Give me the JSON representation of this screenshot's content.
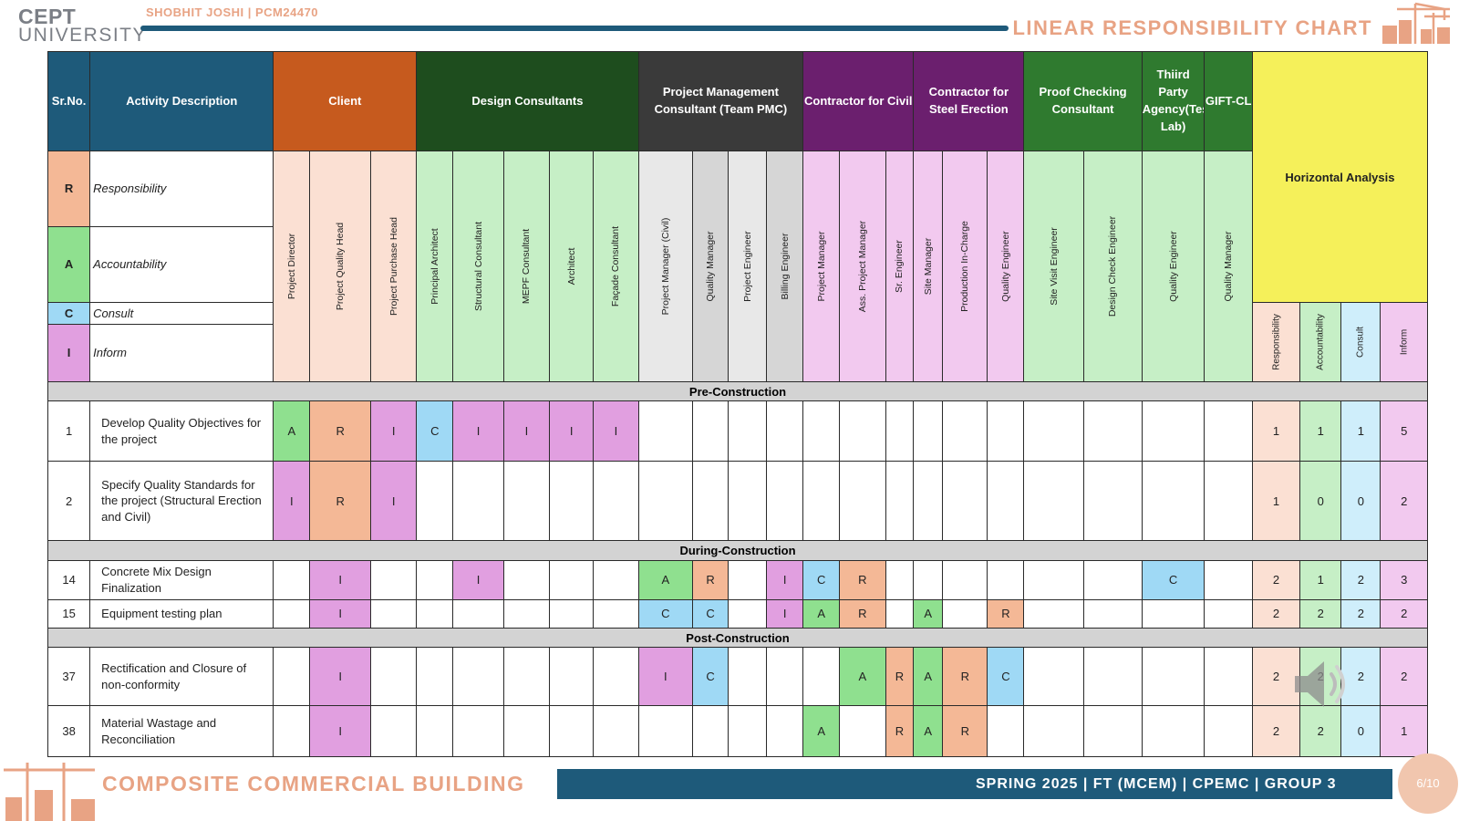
{
  "header": {
    "logo_line1": "CEPT",
    "logo_line2": "UNIVERSITY",
    "author": "SHOBHIT JOSHI | PCM24470",
    "chart_title": "LINEAR RESPONSIBILITY CHART"
  },
  "table": {
    "col_sr": "Sr.No.",
    "col_activity": "Activity Description",
    "groups": [
      {
        "label": "Client",
        "color": "#c65a1e",
        "roles": [
          "Project Director",
          "Project Quality Head",
          "Project Purchase Head"
        ]
      },
      {
        "label": "Design Consultants",
        "color": "#1e4d1e",
        "roles": [
          "Principal Architect",
          "Structural Consultant",
          "MEPF Consultant",
          "Architect",
          "Façade Consultant"
        ]
      },
      {
        "label": "Project Management Consultant (Team PMC)",
        "color": "#3a3a3a",
        "roles": [
          "Project Manager (Civil)",
          "Quality Manager",
          "Project Engineer",
          "Billing Engineer"
        ]
      },
      {
        "label": "Contractor for Civil",
        "color": "#6b1f6e",
        "roles": [
          "Project Manager",
          "Ass. Project Manager",
          "Sr. Engineer"
        ]
      },
      {
        "label": "Contractor for Steel Erection",
        "color": "#6b1f6e",
        "roles": [
          "Site Manager",
          "Production In-Charge",
          "Quality Engineer"
        ]
      },
      {
        "label": "Proof Checking Consultant",
        "color": "#2f7a2f",
        "roles": [
          "Site Visit Engineer",
          "Design Check Engineer"
        ]
      },
      {
        "label": "Thiird Party Agency(Testing Lab)",
        "color": "#2f7a2f",
        "roles": [
          "Quality Engineer"
        ]
      },
      {
        "label": "GIFT-CL",
        "color": "#2f7a2f",
        "roles": [
          "Quality Manager"
        ]
      }
    ],
    "horizontal_analysis": {
      "label": "Horizontal Analysis",
      "columns": [
        "Responsibility",
        "Accountability",
        "Consult",
        "Inform"
      ]
    },
    "key": [
      {
        "code": "R",
        "label": "Responsibility",
        "color": "#f4b896"
      },
      {
        "code": "A",
        "label": "Accountability",
        "color": "#8fe08f"
      },
      {
        "code": "C",
        "label": "Consult",
        "color": "#9fd9f5"
      },
      {
        "code": "I",
        "label": "Inform",
        "color": "#e19fe0"
      }
    ],
    "phases": [
      {
        "label": "Pre-Construction",
        "rows": [
          {
            "sr": "1",
            "activity": "Develop Quality Objectives for the project",
            "codes": [
              "A",
              "R",
              "I",
              "C",
              "I",
              "I",
              "I",
              "I",
              "",
              "",
              "",
              "",
              "",
              "",
              "",
              "",
              "",
              "",
              "",
              "",
              "",
              ""
            ],
            "analysis": [
              "1",
              "1",
              "1",
              "5"
            ]
          },
          {
            "sr": "2",
            "activity": "Specify Quality Standards for the project (Structural Erection and Civil)",
            "codes": [
              "I",
              "R",
              "I",
              "",
              "",
              "",
              "",
              "",
              "",
              "",
              "",
              "",
              "",
              "",
              "",
              "",
              "",
              "",
              "",
              "",
              "",
              ""
            ],
            "analysis": [
              "1",
              "0",
              "0",
              "2"
            ]
          }
        ]
      },
      {
        "label": "During-Construction",
        "rows": [
          {
            "sr": "14",
            "activity": "Concrete Mix Design Finalization",
            "codes": [
              "",
              "I",
              "",
              "",
              "I",
              "",
              "",
              "",
              "A",
              "R",
              "",
              "I",
              "C",
              "R",
              "",
              "",
              "",
              "",
              "",
              "",
              "C",
              ""
            ],
            "analysis": [
              "2",
              "1",
              "2",
              "3"
            ]
          },
          {
            "sr": "15",
            "activity": "Equipment testing plan",
            "codes": [
              "",
              "I",
              "",
              "",
              "",
              "",
              "",
              "",
              "C",
              "C",
              "",
              "I",
              "A",
              "R",
              "",
              "A",
              "",
              "R",
              "",
              "",
              "",
              ""
            ],
            "analysis": [
              "2",
              "2",
              "2",
              "2"
            ]
          }
        ]
      },
      {
        "label": "Post-Construction",
        "rows": [
          {
            "sr": "37",
            "activity": "Rectification and Closure of non-conformity",
            "codes": [
              "",
              "I",
              "",
              "",
              "",
              "",
              "",
              "",
              "I",
              "C",
              "",
              "",
              "",
              "A",
              "R",
              "A",
              "R",
              "C",
              "",
              "",
              "",
              ""
            ],
            "analysis": [
              "2",
              "2",
              "2",
              "2"
            ]
          },
          {
            "sr": "38",
            "activity": "Material Wastage and Reconciliation",
            "codes": [
              "",
              "I",
              "",
              "",
              "",
              "",
              "",
              "",
              "",
              "",
              "",
              "",
              "A",
              "",
              "R",
              "A",
              "R",
              "",
              "",
              "",
              "",
              ""
            ],
            "analysis": [
              "2",
              "2",
              "0",
              "1"
            ]
          }
        ]
      }
    ]
  },
  "footer": {
    "project_title": "COMPOSITE COMMERCIAL BUILDING",
    "info": "SPRING 2025 | FT (MCEM) | CPEMC | GROUP 3",
    "page": "6/10"
  },
  "colors": {
    "R": "#f4b896",
    "A": "#8fe08f",
    "C": "#9fd9f5",
    "I": "#e19fe0",
    "sr_header": "#1e5a7a",
    "accent_bar": "#1e5a7a",
    "title_orange": "#e8a384"
  }
}
